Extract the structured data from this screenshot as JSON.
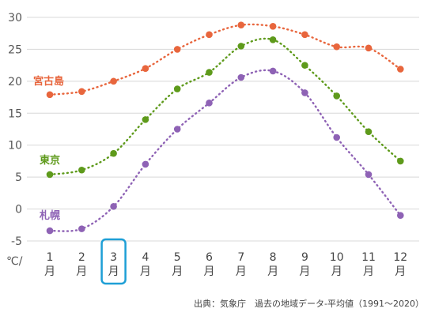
{
  "chart_data": {
    "type": "line",
    "categories": [
      {
        "num": "1",
        "suffix": "月"
      },
      {
        "num": "2",
        "suffix": "月"
      },
      {
        "num": "3",
        "suffix": "月"
      },
      {
        "num": "4",
        "suffix": "月"
      },
      {
        "num": "5",
        "suffix": "月"
      },
      {
        "num": "6",
        "suffix": "月"
      },
      {
        "num": "7",
        "suffix": "月"
      },
      {
        "num": "8",
        "suffix": "月"
      },
      {
        "num": "9",
        "suffix": "月"
      },
      {
        "num": "10",
        "suffix": "月"
      },
      {
        "num": "11",
        "suffix": "月"
      },
      {
        "num": "12",
        "suffix": "月"
      }
    ],
    "ylim": [
      -5,
      30
    ],
    "yticks": [
      "-5",
      "0",
      "5",
      "10",
      "15",
      "20",
      "25",
      "30"
    ],
    "ylabel": "℃/",
    "grid": true,
    "highlight_category": 2,
    "highlight_color": "#1e9fd6",
    "series": [
      {
        "name": "宮古島",
        "color": "#e8663d",
        "values": [
          17.9,
          18.4,
          20.0,
          22.0,
          25.0,
          27.3,
          28.8,
          28.6,
          27.3,
          25.4,
          25.2,
          21.9
        ]
      },
      {
        "name": "東京",
        "color": "#5e9a1b",
        "values": [
          5.4,
          6.1,
          8.7,
          14.0,
          18.8,
          21.4,
          25.5,
          26.5,
          22.5,
          17.7,
          12.1,
          7.5
        ]
      },
      {
        "name": "札幌",
        "color": "#8e62b5",
        "values": [
          -3.4,
          -3.1,
          0.4,
          7.0,
          12.5,
          16.6,
          20.6,
          21.6,
          18.2,
          11.2,
          5.4,
          -1.0
        ]
      }
    ]
  },
  "source_text": "出典：気象庁　過去の地域データ-平均値（1991〜2020）"
}
